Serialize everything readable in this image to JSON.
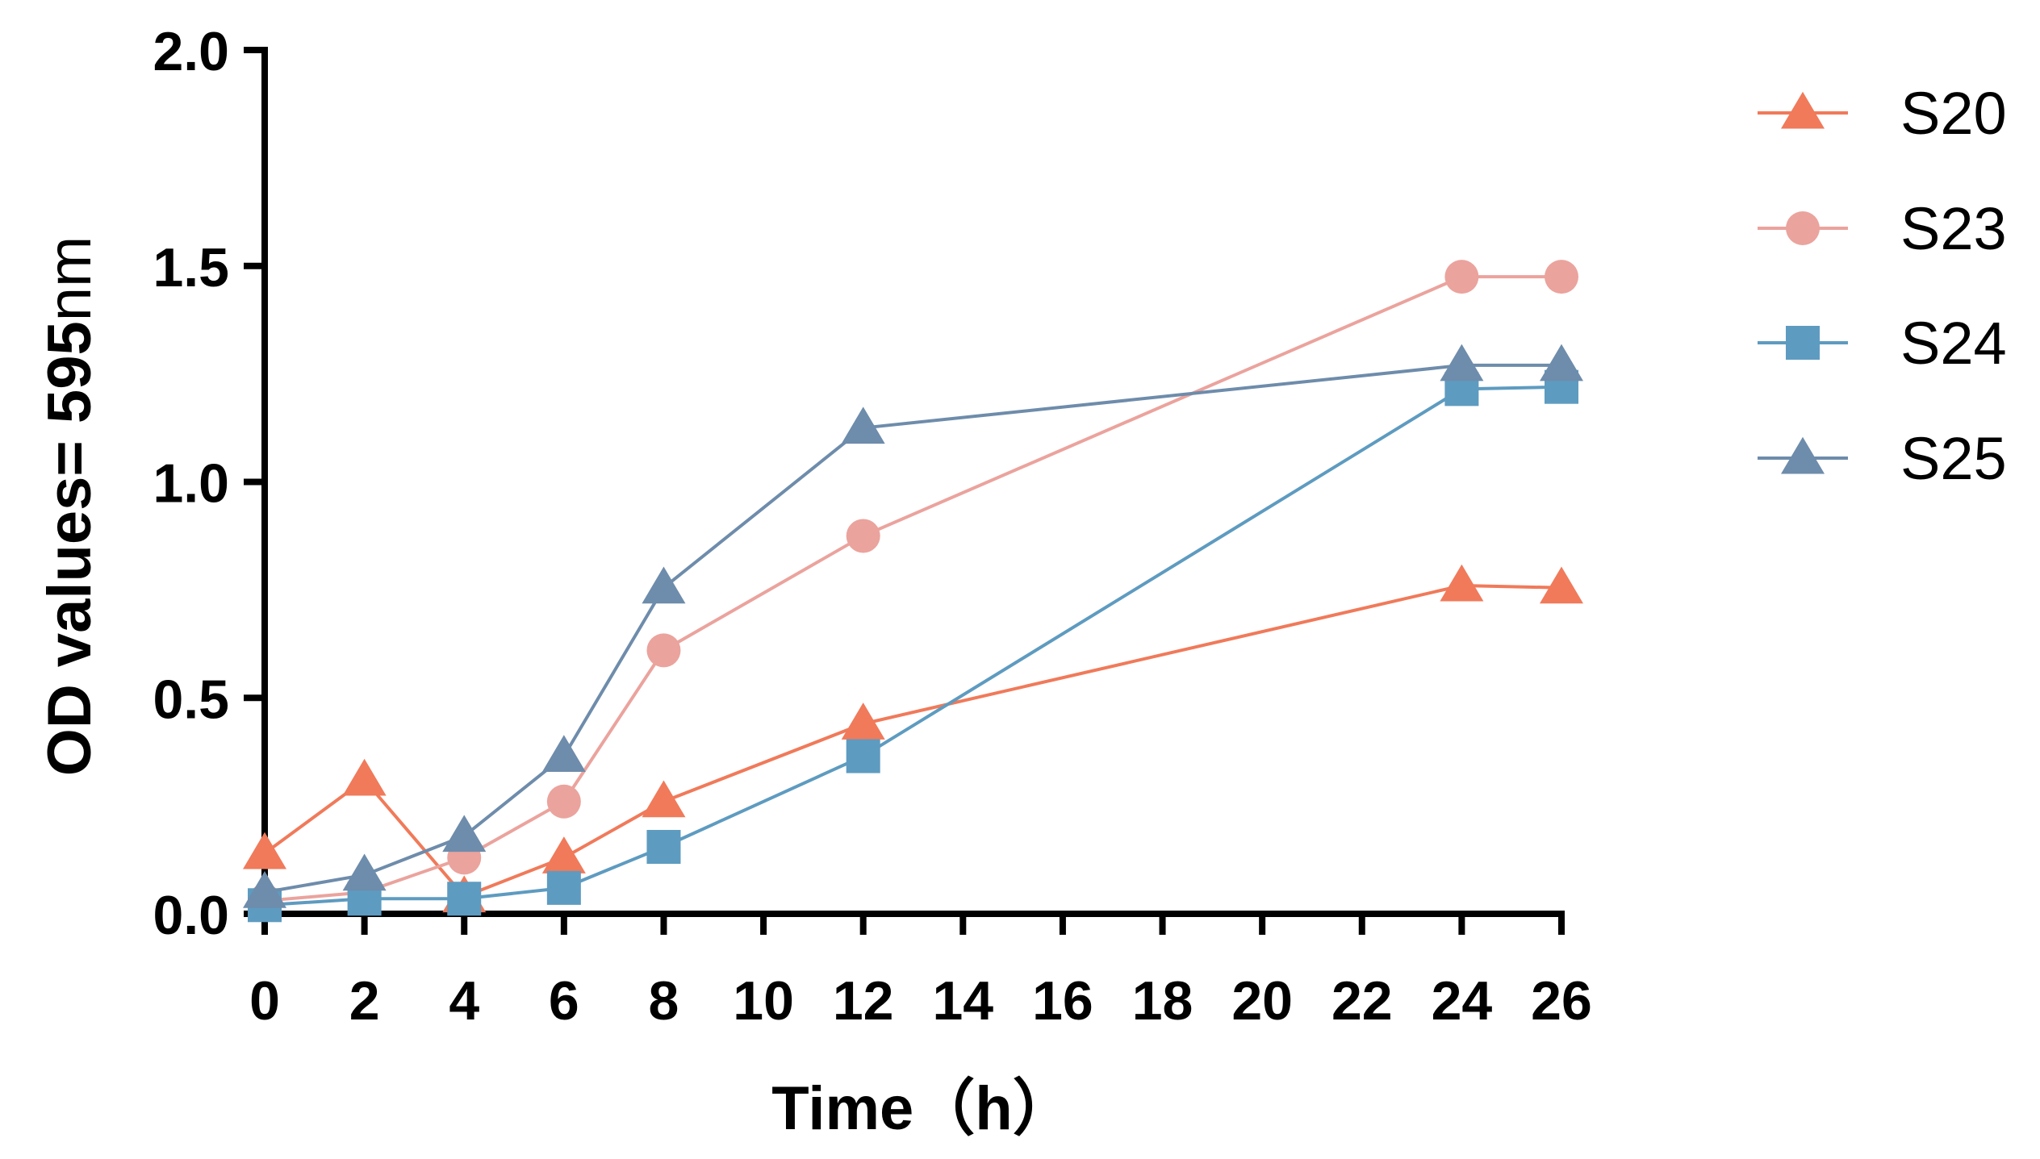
{
  "chart_data": {
    "type": "line",
    "title": "",
    "xlabel": "Time（h）",
    "ylabel": "OD values= 595nm",
    "ylabel_bold_part": "OD values= 595",
    "ylabel_unit_part": "nm",
    "xlim": [
      0,
      26
    ],
    "ylim": [
      0,
      2.0
    ],
    "xticks": [
      0,
      2,
      4,
      6,
      8,
      10,
      12,
      14,
      16,
      18,
      20,
      22,
      24,
      26
    ],
    "yticks": [
      0.0,
      0.5,
      1.0,
      1.5,
      2.0
    ],
    "ytick_labels": [
      "0.0",
      "0.5",
      "1.0",
      "1.5",
      "2.0"
    ],
    "grid": false,
    "legend_position": "right",
    "x": [
      0,
      2,
      4,
      6,
      8,
      12,
      24,
      26
    ],
    "series": [
      {
        "name": "S20",
        "marker": "triangle",
        "color": "#F07A5A",
        "values": [
          0.14,
          0.31,
          0.04,
          0.13,
          0.26,
          0.44,
          0.76,
          0.755
        ]
      },
      {
        "name": "S23",
        "marker": "circle",
        "color": "#EBA39D",
        "values": [
          0.03,
          0.05,
          0.13,
          0.26,
          0.61,
          0.875,
          1.475,
          1.475
        ]
      },
      {
        "name": "S24",
        "marker": "square",
        "color": "#5E9BC0",
        "values": [
          0.02,
          0.035,
          0.035,
          0.06,
          0.155,
          0.365,
          1.215,
          1.22
        ]
      },
      {
        "name": "S25",
        "marker": "triangle",
        "color": "#6E8CAB",
        "values": [
          0.05,
          0.09,
          0.18,
          0.365,
          0.755,
          1.125,
          1.27,
          1.27
        ]
      }
    ]
  }
}
